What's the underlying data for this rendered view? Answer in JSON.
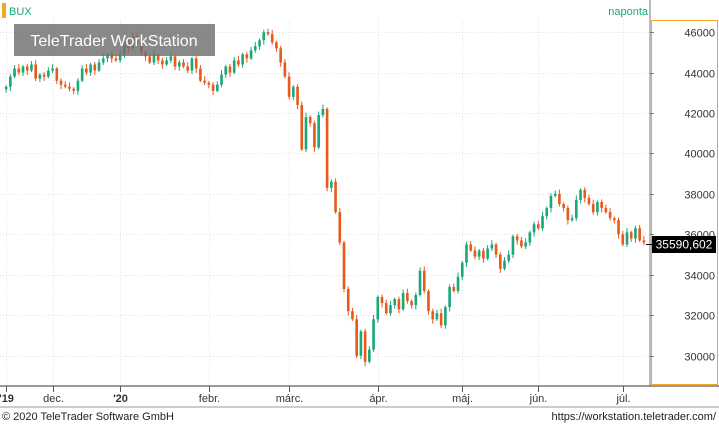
{
  "header": {
    "symbol": "BUX",
    "period": "naponta"
  },
  "watermark": "TeleTrader WorkStation",
  "footer": {
    "copyright": "© 2020 TeleTrader Software GmbH",
    "url": "https://workstation.teletrader.com/"
  },
  "colors": {
    "up": "#1aa77a",
    "down": "#e8591a",
    "accent": "#f5a623",
    "header_text": "#1aa77a",
    "current_bg": "#000000"
  },
  "chart_data": {
    "type": "candlestick",
    "title": "BUX",
    "interval": "naponta",
    "ylim": [
      28600,
      46600
    ],
    "yticks": [
      30000,
      32000,
      34000,
      36000,
      38000,
      40000,
      42000,
      44000,
      46000
    ],
    "ytick_labels": [
      "30000",
      "32000",
      "34000",
      "36000",
      "38000",
      "40000",
      "42000",
      "44000",
      "46000"
    ],
    "xlabels": [
      {
        "label": "'19",
        "index": 0
      },
      {
        "label": "dec.",
        "index": 11
      },
      {
        "label": "'20",
        "index": 27
      },
      {
        "label": "febr.",
        "index": 48
      },
      {
        "label": "márc.",
        "index": 67
      },
      {
        "label": "ápr.",
        "index": 88
      },
      {
        "label": "máj.",
        "index": 108
      },
      {
        "label": "jún.",
        "index": 126
      },
      {
        "label": "júl.",
        "index": 146
      }
    ],
    "current_value": "35590,602",
    "current_level": 35590.602,
    "grid": true,
    "closes": [
      43300,
      43800,
      44200,
      44000,
      44300,
      44100,
      44400,
      43700,
      43900,
      43800,
      44100,
      44200,
      43600,
      43400,
      43300,
      43200,
      43100,
      43600,
      44200,
      44000,
      44400,
      44100,
      44500,
      44700,
      44900,
      44700,
      44600,
      44900,
      45500,
      45200,
      45800,
      45500,
      45000,
      44800,
      44500,
      44900,
      44600,
      44400,
      44600,
      44800,
      44300,
      44500,
      44300,
      44100,
      44700,
      44200,
      43600,
      43500,
      43400,
      43100,
      43400,
      43900,
      44300,
      44000,
      44600,
      44400,
      44900,
      44700,
      45100,
      45300,
      45600,
      46000,
      45900,
      45500,
      45200,
      44500,
      43800,
      42800,
      43300,
      42400,
      40200,
      41800,
      41500,
      40300,
      41900,
      42200,
      38300,
      38600,
      37100,
      35600,
      33300,
      32200,
      31800,
      30000,
      31200,
      29700,
      30300,
      31800,
      32900,
      32600,
      32100,
      32500,
      32800,
      32300,
      33100,
      32700,
      32500,
      33000,
      34200,
      33200,
      32200,
      31800,
      32100,
      31500,
      32400,
      33400,
      33200,
      33900,
      34600,
      35500,
      35200,
      34900,
      35200,
      34800,
      35300,
      35500,
      35000,
      34300,
      34700,
      35000,
      35900,
      35700,
      35400,
      35600,
      36100,
      36500,
      36300,
      36900,
      37300,
      37900,
      38000,
      37500,
      37300,
      36700,
      36800,
      37700,
      38200,
      37800,
      37500,
      37100,
      37600,
      37300,
      37100,
      36800,
      36700,
      36000,
      35500,
      36100,
      35800,
      36300,
      35700,
      35590
    ]
  }
}
